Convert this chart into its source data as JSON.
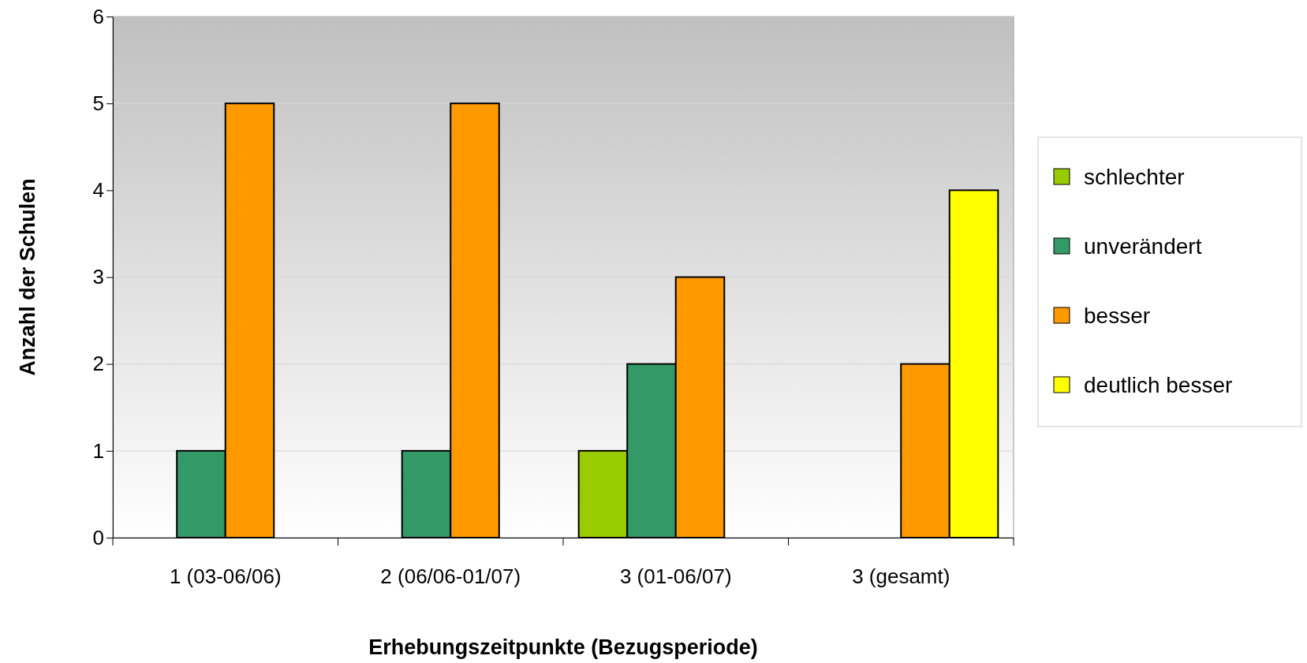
{
  "chart_data": {
    "type": "bar",
    "xlabel": "Erhebungszeitpunkte (Bezugsperiode)",
    "ylabel": "Anzahl der Schulen",
    "categories": [
      "1 (03-06/06)",
      "2 (06/06-01/07)",
      "3 (01-06/07)",
      "3 (gesamt)"
    ],
    "series": [
      {
        "name": "schlechter",
        "color": "#99cc00",
        "values": [
          0,
          0,
          1,
          0
        ]
      },
      {
        "name": "unverändert",
        "color": "#339966",
        "values": [
          1,
          1,
          2,
          0
        ]
      },
      {
        "name": "besser",
        "color": "#ff9900",
        "values": [
          5,
          5,
          3,
          2
        ]
      },
      {
        "name": "deutlich besser",
        "color": "#ffff00",
        "values": [
          0,
          0,
          0,
          4
        ]
      }
    ],
    "ylim": [
      0,
      6
    ],
    "yticks": [
      0,
      1,
      2,
      3,
      4,
      5,
      6
    ],
    "grid": "y",
    "legend": "right"
  }
}
